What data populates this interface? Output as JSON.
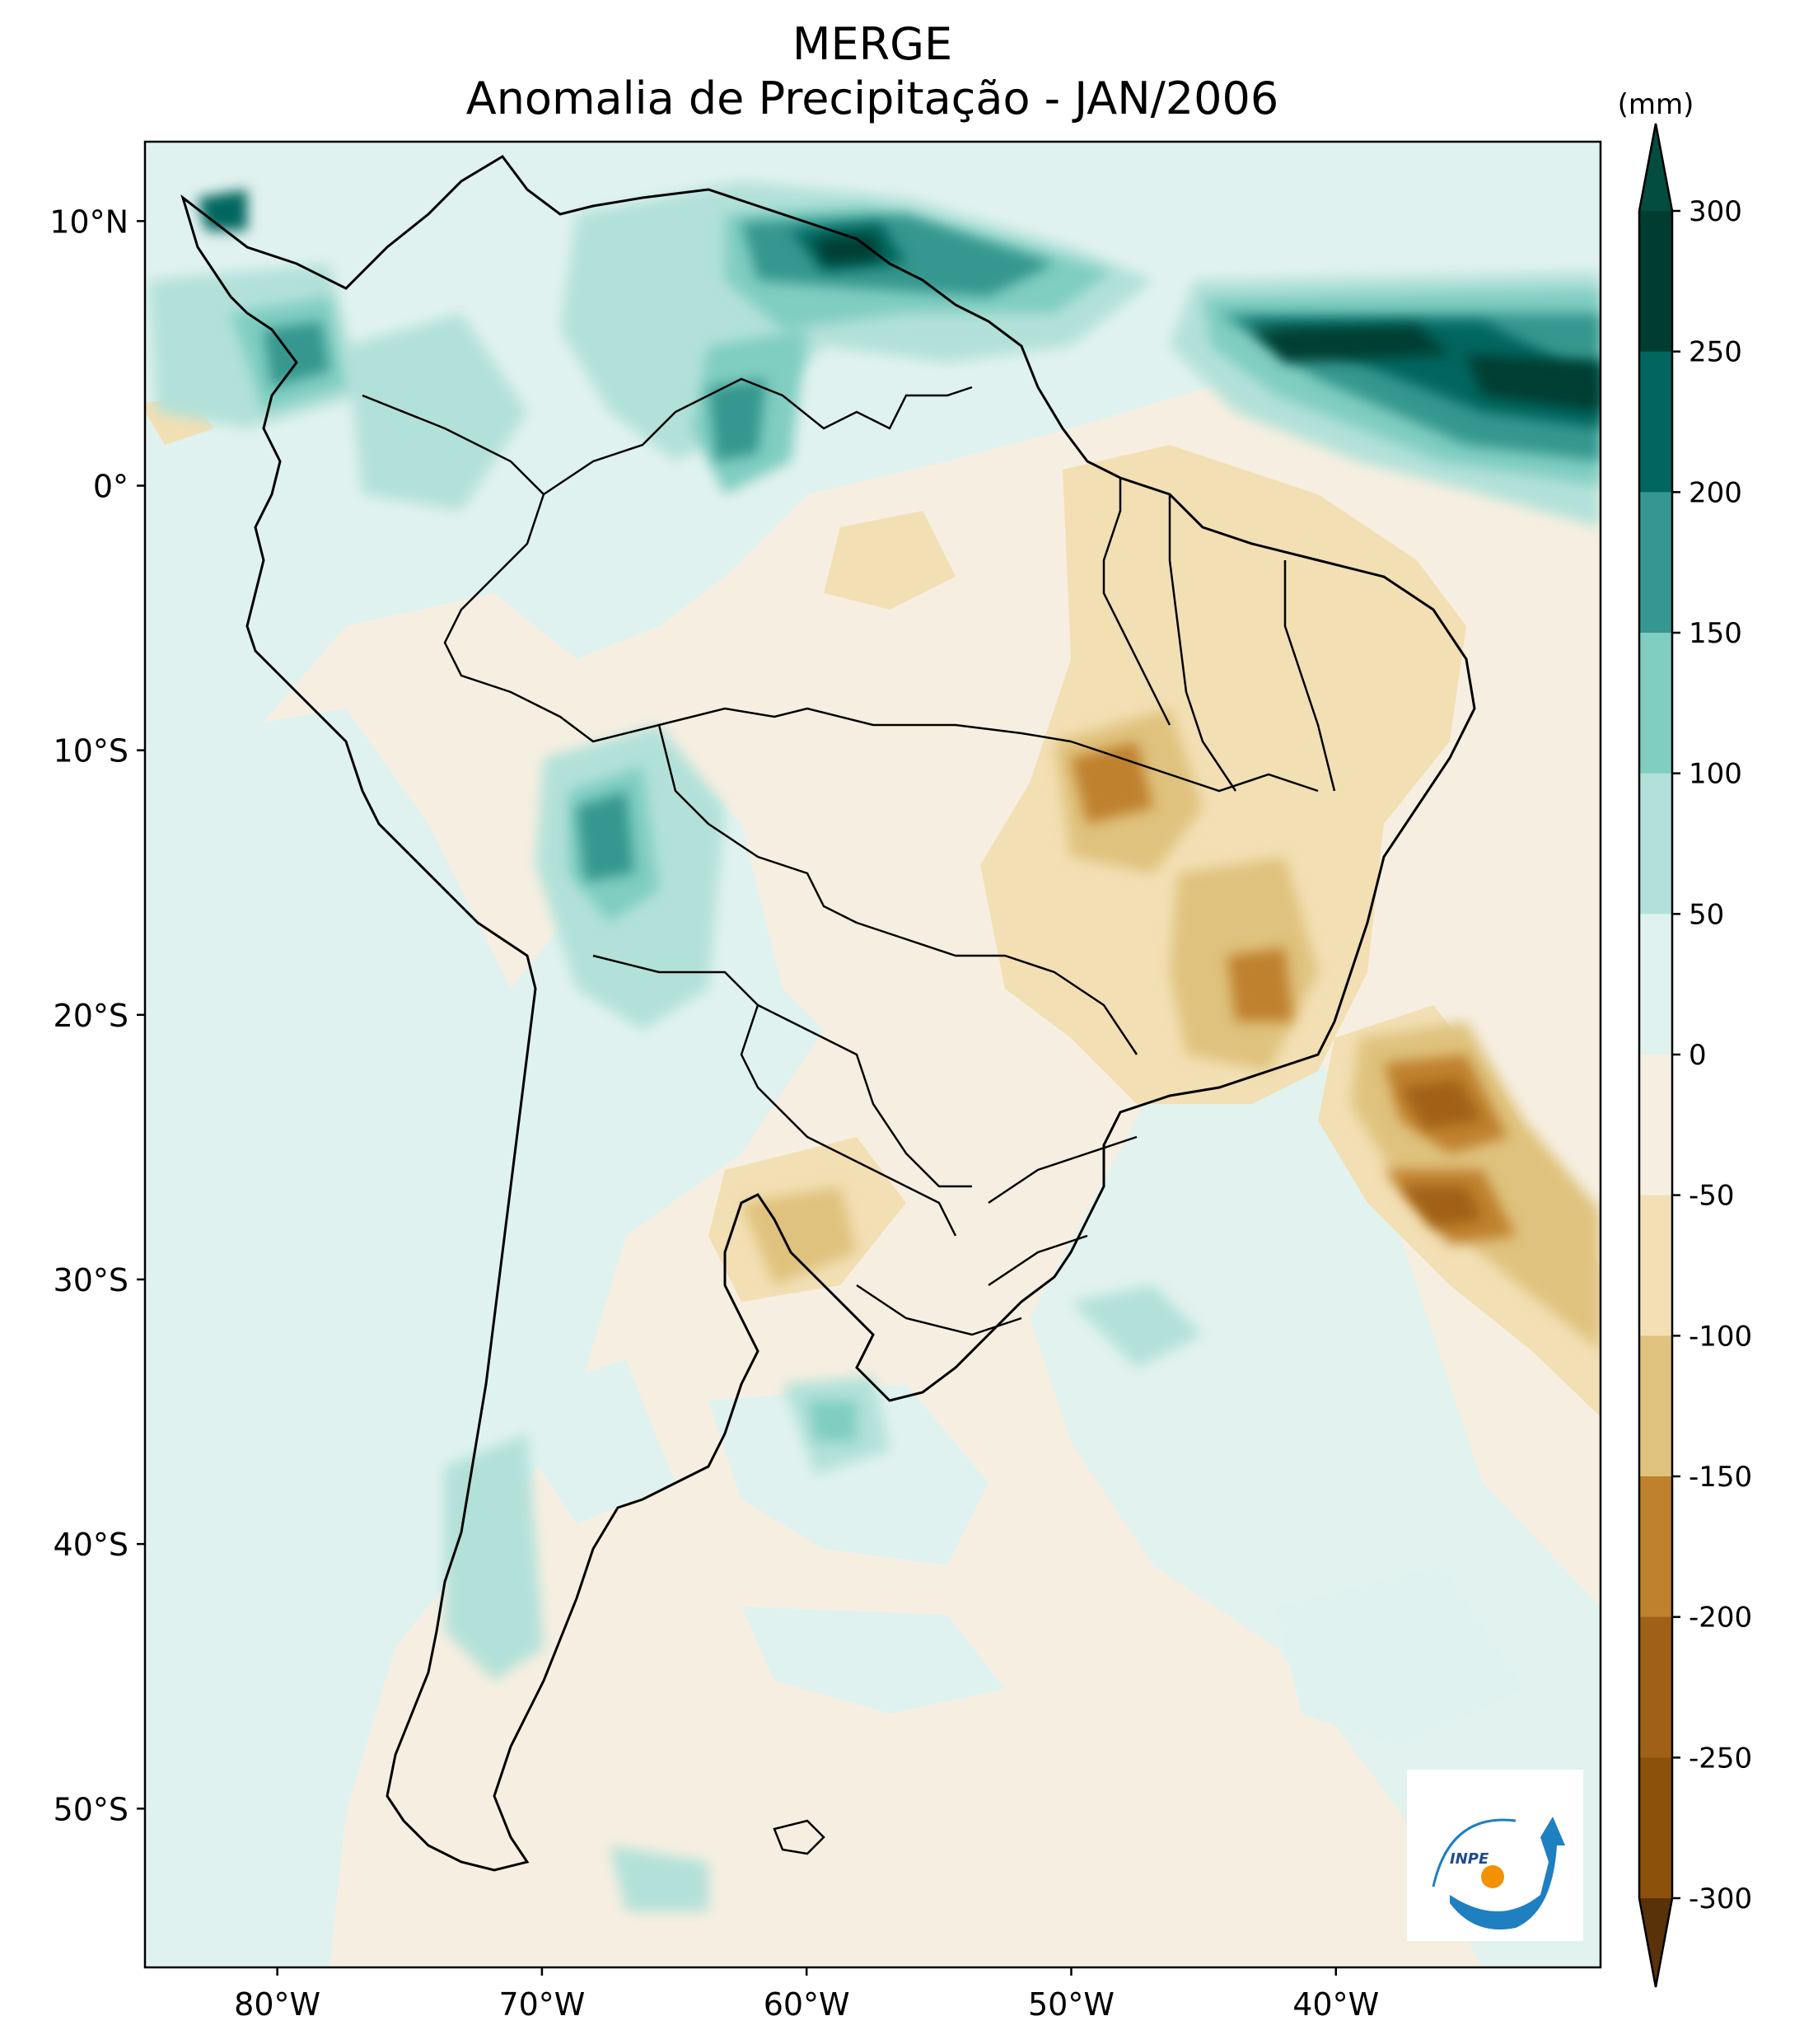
{
  "title": {
    "line1": "MERGE",
    "line2": "Anomalia de Precipitação - JAN/2006"
  },
  "colorbar": {
    "unit": "(mm)",
    "ticks": [
      "300",
      "250",
      "200",
      "150",
      "100",
      "50",
      "0",
      "-50",
      "-100",
      "-150",
      "-200",
      "-250",
      "-300"
    ],
    "colors": [
      "#003c30",
      "#01665e",
      "#35978f",
      "#80cdc1",
      "#b2e1d9",
      "#e0f2ef",
      "#f6efe1",
      "#f2dfb4",
      "#dfc27d",
      "#bf812d",
      "#a16017",
      "#8c510a",
      "#6b3c0a"
    ],
    "extend_max_color": "#024d40",
    "extend_min_color": "#5a320a"
  },
  "axes": {
    "lon_labels": [
      "80°W",
      "70°W",
      "60°W",
      "50°W",
      "40°W"
    ],
    "lat_labels": [
      "10°N",
      "0°",
      "10°S",
      "20°S",
      "30°S",
      "40°S",
      "50°S"
    ]
  },
  "logo": {
    "text": "INPE"
  },
  "chart_data": {
    "type": "heatmap",
    "variable": "precipitation anomaly",
    "units": "mm",
    "lon_range": [
      -85,
      -30
    ],
    "lat_range": [
      -56,
      13
    ],
    "levels": [
      -300,
      -250,
      -200,
      -150,
      -100,
      -50,
      0,
      50,
      100,
      150,
      200,
      250,
      300
    ],
    "lon_ticks": [
      -80,
      -70,
      -60,
      -50,
      -40
    ],
    "lat_ticks": [
      10,
      0,
      -10,
      -20,
      -30,
      -40,
      -50
    ],
    "features": [
      {
        "region": "Northern South America / tropical Atlantic (~5°N)",
        "anomaly": "positive",
        "approx_max": 300
      },
      {
        "region": "Western Amazon / Bolivia",
        "anomaly": "positive",
        "approx_max": 150
      },
      {
        "region": "Central-east Brazil (Bahia, Minas Gerais, Goiás)",
        "anomaly": "negative",
        "approx_min": -200
      },
      {
        "region": "Atlantic off SE Brazil (~25°S, 37°W)",
        "anomaly": "negative",
        "approx_min": -200
      },
      {
        "region": "Southern Patagonia coast",
        "anomaly": "positive",
        "approx_max": 100
      }
    ]
  }
}
